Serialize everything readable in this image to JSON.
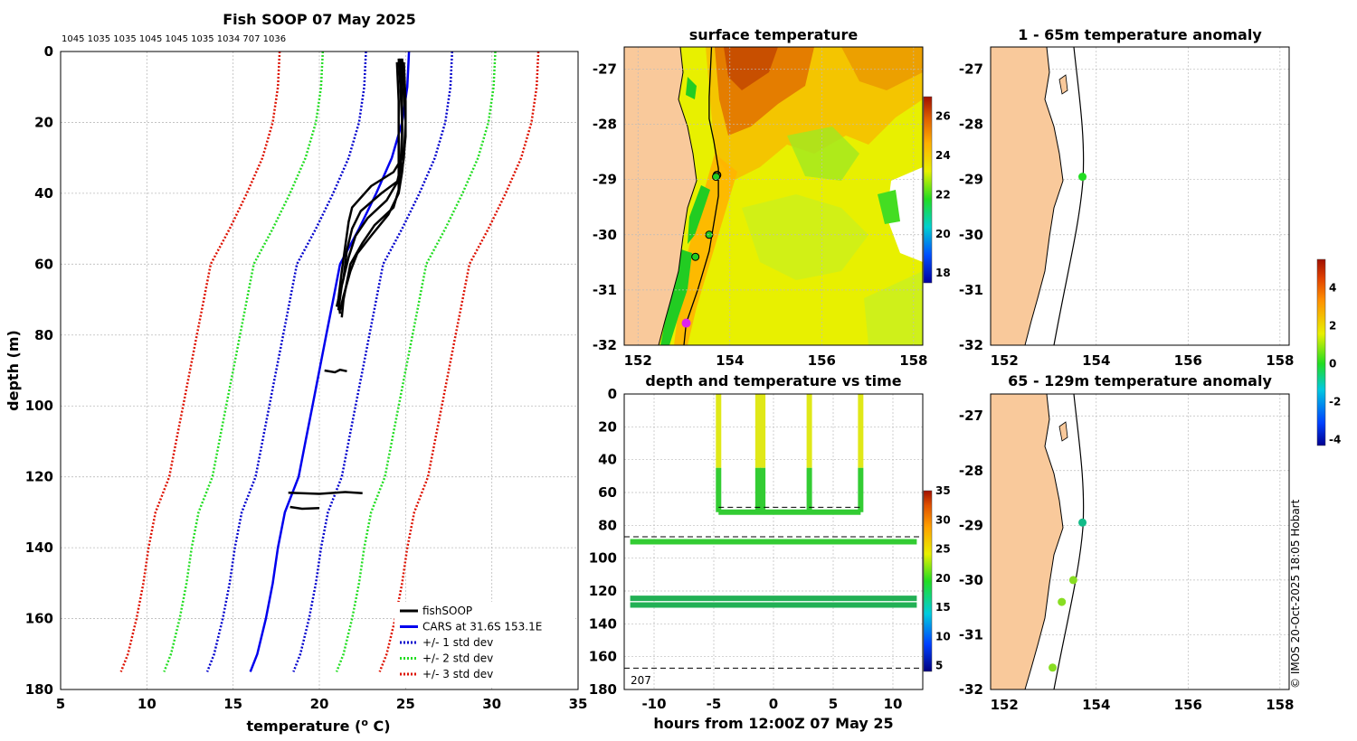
{
  "colors": {
    "observation": "#000000",
    "cars_mean": "#0000ee",
    "std1": "#0000cc",
    "std2": "#22dd22",
    "std3": "#dd1100",
    "land": "#f9c99b",
    "grid": "#bbbbbb"
  },
  "credit": "© IMOS 20-Oct-2025 18:05 Hobart",
  "chart_data": [
    {
      "id": "profile",
      "type": "line",
      "title": "Fish SOOP 07 May 2025",
      "cast_depths_label": "1045 1035 1035 1045 1045 1035 1034 707 1036",
      "xlabel": "temperature (o C)",
      "xlabel_main": "temperature (",
      "xlabel_sup": "o",
      "xlabel_end": " C)",
      "ylabel": "depth (m)",
      "xlim": [
        5,
        35
      ],
      "ylim": [
        180,
        0
      ],
      "xticks": [
        5,
        10,
        15,
        20,
        25,
        30,
        35
      ],
      "yticks": [
        0,
        20,
        40,
        60,
        80,
        100,
        120,
        140,
        160,
        180
      ],
      "legend": {
        "position": "bottom-right",
        "entries": [
          {
            "label": "fishSOOP",
            "color": "#000000",
            "style": "solid"
          },
          {
            "label": "CARS at 31.6S 153.1E",
            "color": "#0000ee",
            "style": "solid"
          },
          {
            "label": "+/- 1 std dev",
            "color": "#0000cc",
            "style": "dotted"
          },
          {
            "label": "+/- 2 std dev",
            "color": "#22dd22",
            "style": "dotted"
          },
          {
            "label": "+/- 3 std dev",
            "color": "#dd1100",
            "style": "dotted"
          }
        ]
      },
      "depth": [
        0,
        10,
        20,
        30,
        40,
        50,
        60,
        70,
        80,
        90,
        100,
        110,
        120,
        130,
        140,
        150,
        160,
        170,
        175
      ],
      "cars_mean": [
        25.2,
        25.1,
        24.8,
        24.2,
        23.3,
        22.3,
        21.2,
        20.8,
        20.4,
        20.0,
        19.6,
        19.2,
        18.8,
        18.0,
        17.6,
        17.3,
        16.9,
        16.4,
        16.0
      ],
      "std_offsets": [
        2.5,
        5.0,
        7.5
      ],
      "observations": [
        {
          "depth": [
            2,
            10,
            20,
            30,
            34,
            38,
            44,
            48,
            55,
            62,
            70,
            74
          ],
          "temp": [
            24.6,
            24.7,
            24.8,
            24.8,
            24.3,
            23.0,
            21.9,
            21.7,
            21.5,
            21.3,
            21.1,
            21.2
          ]
        },
        {
          "depth": [
            2,
            10,
            20,
            30,
            36,
            40,
            45,
            50,
            56,
            64,
            72
          ],
          "temp": [
            24.8,
            24.9,
            25.0,
            24.9,
            24.7,
            23.6,
            22.4,
            21.9,
            21.6,
            21.4,
            21.0
          ]
        },
        {
          "depth": [
            2,
            12,
            22,
            33,
            37,
            42,
            47,
            52,
            58,
            66,
            73
          ],
          "temp": [
            24.7,
            24.8,
            24.8,
            24.7,
            24.5,
            23.9,
            22.8,
            22.1,
            21.7,
            21.3,
            21.1
          ]
        },
        {
          "depth": [
            3,
            14,
            25,
            34,
            39,
            44,
            49,
            54,
            60,
            70,
            75
          ],
          "temp": [
            24.5,
            24.6,
            24.6,
            24.6,
            24.6,
            24.3,
            23.2,
            22.5,
            21.8,
            21.4,
            21.3
          ]
        },
        {
          "depth": [
            3,
            14,
            24,
            34,
            40,
            46,
            52,
            57,
            62,
            69,
            73
          ],
          "temp": [
            24.9,
            25.0,
            25.0,
            24.8,
            24.6,
            24.0,
            23.0,
            22.2,
            21.8,
            21.4,
            21.2
          ]
        },
        {
          "depth": [
            90,
            90.5,
            89.8,
            90.2
          ],
          "temp": [
            20.3,
            20.9,
            21.2,
            21.6
          ]
        },
        {
          "depth": [
            124.5,
            124.8,
            124.3,
            124.6
          ],
          "temp": [
            18.2,
            20.0,
            21.5,
            22.5
          ]
        },
        {
          "depth": [
            128.5,
            129,
            128.8
          ],
          "temp": [
            18.3,
            19.0,
            20.0
          ]
        }
      ]
    },
    {
      "id": "sst_map",
      "type": "heatmap",
      "title": "surface temperature",
      "lon_range": [
        151.7,
        158.2
      ],
      "lat_range": [
        -32.0,
        -26.6
      ],
      "xticks": [
        152,
        154,
        156,
        158
      ],
      "yticks": [
        -27,
        -28,
        -29,
        -30,
        -31,
        -32
      ],
      "colorbar": {
        "range": [
          17.5,
          27
        ],
        "ticks": [
          18,
          20,
          22,
          24,
          26
        ]
      },
      "track": [
        [
          153.0,
          -32.0
        ],
        [
          153.05,
          -31.6
        ],
        [
          153.3,
          -31.0
        ],
        [
          153.55,
          -30.3
        ],
        [
          153.75,
          -29.3
        ],
        [
          153.75,
          -28.8
        ],
        [
          153.65,
          -28.3
        ],
        [
          153.55,
          -27.9
        ],
        [
          153.55,
          -27.5
        ],
        [
          153.6,
          -26.6
        ]
      ],
      "markers": [
        {
          "lon": 153.7,
          "lat": -28.95,
          "label": "cast",
          "color": "#22cc22"
        },
        {
          "lon": 153.55,
          "lat": -30.0,
          "label": "cast",
          "color": "#22cc22"
        },
        {
          "lon": 153.25,
          "lat": -30.4,
          "label": "cast",
          "color": "#22cc22"
        },
        {
          "lon": 153.05,
          "lat": -31.6,
          "label": "current position",
          "color": "#dd22ee"
        }
      ]
    },
    {
      "id": "time_depth",
      "type": "scatter",
      "title": "depth and temperature vs time",
      "xlabel": "hours from 12:00Z 07 May 25",
      "xlim": [
        -12.5,
        12.5
      ],
      "ylim": [
        180,
        0
      ],
      "xticks": [
        -10,
        -5,
        0,
        5,
        10
      ],
      "yticks": [
        0,
        20,
        40,
        60,
        80,
        100,
        120,
        140,
        160,
        180
      ],
      "reference_lines": [
        87,
        167
      ],
      "annotation": "207",
      "colorbar": {
        "range": [
          4,
          35
        ],
        "ticks": [
          5,
          10,
          15,
          20,
          25,
          30,
          35
        ]
      },
      "series": [
        {
          "name": "vertical cast",
          "x": [
            -4.6,
            -4.6
          ],
          "y": [
            0,
            72
          ],
          "temp_top": 24.8,
          "temp_bottom": 21.0
        },
        {
          "name": "vertical cast",
          "x": [
            -1.3,
            -1.3
          ],
          "y": [
            0,
            72
          ],
          "temp_top": 24.8,
          "temp_bottom": 21.0
        },
        {
          "name": "vertical cast",
          "x": [
            -0.9,
            -0.9
          ],
          "y": [
            0,
            72
          ],
          "temp_top": 24.8,
          "temp_bottom": 21.0
        },
        {
          "name": "vertical cast",
          "x": [
            3.0,
            3.0
          ],
          "y": [
            0,
            72
          ],
          "temp_top": 24.8,
          "temp_bottom": 21.0
        },
        {
          "name": "vertical cast",
          "x": [
            7.3,
            7.3
          ],
          "y": [
            0,
            72
          ],
          "temp_top": 24.8,
          "temp_bottom": 21.0
        },
        {
          "name": "bottom track",
          "x": [
            -4.6,
            7.3
          ],
          "y": [
            72,
            72
          ],
          "temp": 21.0
        },
        {
          "name": "deep track 1",
          "x": [
            -12,
            12
          ],
          "y": [
            90,
            90
          ],
          "temp": 21.0
        },
        {
          "name": "deep track 2",
          "x": [
            -12,
            12
          ],
          "y": [
            124.5,
            124.5
          ],
          "temp": 19.5
        },
        {
          "name": "deep track 3",
          "x": [
            -12,
            12
          ],
          "y": [
            128.5,
            128.5
          ],
          "temp": 18.5
        }
      ]
    },
    {
      "id": "anom_shallow",
      "type": "scatter",
      "title": "1 - 65m temperature anomaly",
      "xticks": [
        152,
        154,
        156,
        158
      ],
      "yticks": [
        -27,
        -28,
        -29,
        -30,
        -31,
        -32
      ],
      "points": [
        {
          "lon": 153.7,
          "lat": -28.95,
          "anomaly": 0.1
        }
      ]
    },
    {
      "id": "anom_deep",
      "type": "scatter",
      "title": "65 - 129m temperature anomaly",
      "xticks": [
        152,
        154,
        156,
        158
      ],
      "yticks": [
        -27,
        -28,
        -29,
        -30,
        -31,
        -32
      ],
      "points": [
        {
          "lon": 153.7,
          "lat": -28.95,
          "anomaly": -1.0
        },
        {
          "lon": 153.5,
          "lat": -30.0,
          "anomaly": 0.6
        },
        {
          "lon": 153.25,
          "lat": -30.4,
          "anomaly": 0.6
        },
        {
          "lon": 153.05,
          "lat": -31.6,
          "anomaly": 0.6
        }
      ],
      "colorbar": {
        "range": [
          -4.3,
          5.5
        ],
        "ticks": [
          4,
          2,
          0,
          -2,
          -4
        ]
      }
    }
  ]
}
